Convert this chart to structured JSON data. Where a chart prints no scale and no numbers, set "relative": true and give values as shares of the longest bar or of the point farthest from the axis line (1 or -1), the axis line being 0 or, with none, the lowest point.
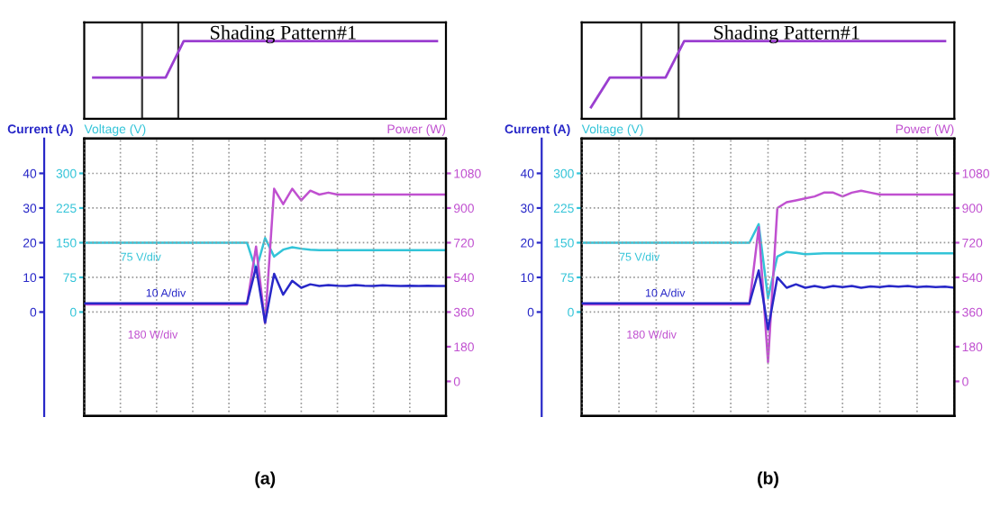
{
  "chart_data": [
    {
      "type": "line",
      "relative": true,
      "title": "Shading Pattern#1",
      "categories": [
        null,
        null,
        null,
        null,
        null,
        null,
        null,
        null,
        null,
        null,
        null,
        null,
        null,
        null,
        null,
        null,
        null,
        null,
        null,
        null
      ],
      "tick_labels": false,
      "grid": false,
      "series": [
        {
          "color": "#9b3fd0",
          "values": [
            0.53,
            0.53,
            0.53,
            0.53,
            0.53,
            1,
            1,
            1,
            1,
            1,
            1,
            1,
            1,
            1,
            1,
            1,
            1,
            1,
            1,
            1
          ]
        }
      ]
    },
    {
      "type": "line",
      "ylabel": "Current (A)",
      "y2label": "Voltage (V)",
      "y3label": "Power (W)",
      "categories": [
        null,
        null,
        null,
        null,
        null,
        null,
        null,
        null,
        null,
        null,
        null,
        null,
        null,
        null,
        null,
        null,
        null,
        null,
        null,
        null,
        null,
        null,
        null,
        null,
        null,
        null,
        null,
        null,
        null,
        null,
        null,
        null,
        null,
        null,
        null,
        null,
        null,
        null,
        null,
        null,
        null
      ],
      "ylim": [
        -30,
        50
      ],
      "yticks": [
        0,
        10,
        20,
        30,
        40
      ],
      "y2lim": [
        -225,
        375
      ],
      "y2ticks": [
        0,
        75,
        150,
        225,
        300
      ],
      "y3lim": [
        -180,
        1260
      ],
      "y3ticks": [
        0,
        180,
        360,
        540,
        720,
        900,
        1080
      ],
      "tick_labels": "y",
      "grid": true,
      "annotations": [
        "75 V/div",
        "10 A/div",
        "180 W/div",
        "(a)"
      ],
      "series": [
        {
          "axis": "y2",
          "color": "#33c4d8",
          "values": [
            150,
            150,
            150,
            150,
            150,
            150,
            150,
            150,
            150,
            150,
            150,
            150,
            150,
            150,
            150,
            150,
            150,
            150,
            150,
            90,
            160,
            120,
            135,
            140,
            137,
            135,
            134,
            134,
            134,
            134,
            134,
            134,
            134,
            134,
            134,
            134,
            134,
            134,
            134,
            134,
            134
          ]
        },
        {
          "axis": "y",
          "color": "#2828c8",
          "values": [
            2.5,
            2.5,
            2.5,
            2.5,
            2.5,
            2.5,
            2.5,
            2.5,
            2.5,
            2.5,
            2.5,
            2.5,
            2.5,
            2.5,
            2.5,
            2.5,
            2.5,
            2.5,
            2.5,
            13,
            -3,
            11,
            5,
            9,
            7,
            8,
            7.5,
            7.8,
            7.6,
            7.5,
            7.8,
            7.6,
            7.5,
            7.7,
            7.6,
            7.5,
            7.6,
            7.5,
            7.6,
            7.5,
            7.5
          ]
        },
        {
          "axis": "y3",
          "color": "#c050d0",
          "values": [
            400,
            400,
            400,
            400,
            400,
            400,
            400,
            400,
            400,
            400,
            400,
            400,
            400,
            400,
            400,
            400,
            400,
            400,
            400,
            700,
            300,
            1000,
            920,
            1000,
            940,
            990,
            970,
            980,
            970,
            970,
            970,
            970,
            970,
            970,
            970,
            970,
            970,
            970,
            970,
            970,
            970
          ]
        }
      ]
    },
    {
      "type": "line",
      "relative": true,
      "title": "Shading Pattern#1",
      "categories": [
        null,
        null,
        null,
        null,
        null,
        null,
        null,
        null,
        null,
        null,
        null,
        null,
        null,
        null,
        null,
        null,
        null,
        null,
        null,
        null
      ],
      "tick_labels": false,
      "grid": false,
      "series": [
        {
          "color": "#9b3fd0",
          "values": [
            0.15,
            0.53,
            0.53,
            0.53,
            0.53,
            1,
            1,
            1,
            1,
            1,
            1,
            1,
            1,
            1,
            1,
            1,
            1,
            1,
            1,
            1
          ]
        }
      ]
    },
    {
      "type": "line",
      "ylabel": "Current (A)",
      "y2label": "Voltage (V)",
      "y3label": "Power (W)",
      "categories": [
        null,
        null,
        null,
        null,
        null,
        null,
        null,
        null,
        null,
        null,
        null,
        null,
        null,
        null,
        null,
        null,
        null,
        null,
        null,
        null,
        null,
        null,
        null,
        null,
        null,
        null,
        null,
        null,
        null,
        null,
        null,
        null,
        null,
        null,
        null,
        null,
        null,
        null,
        null,
        null,
        null
      ],
      "ylim": [
        -30,
        50
      ],
      "yticks": [
        0,
        10,
        20,
        30,
        40
      ],
      "y2lim": [
        -225,
        375
      ],
      "y2ticks": [
        0,
        75,
        150,
        225,
        300
      ],
      "y3lim": [
        -180,
        1260
      ],
      "y3ticks": [
        0,
        180,
        360,
        540,
        720,
        900,
        1080
      ],
      "tick_labels": "y",
      "grid": true,
      "annotations": [
        "75 V/div",
        "10 A/div",
        "180 W/div",
        "(b)"
      ],
      "series": [
        {
          "axis": "y2",
          "color": "#33c4d8",
          "values": [
            150,
            150,
            150,
            150,
            150,
            150,
            150,
            150,
            150,
            150,
            150,
            150,
            150,
            150,
            150,
            150,
            150,
            150,
            150,
            190,
            30,
            120,
            130,
            128,
            125,
            126,
            127,
            127,
            127,
            127,
            127,
            127,
            127,
            127,
            127,
            127,
            127,
            127,
            127,
            127,
            127
          ]
        },
        {
          "axis": "y",
          "color": "#2828c8",
          "values": [
            2.5,
            2.5,
            2.5,
            2.5,
            2.5,
            2.5,
            2.5,
            2.5,
            2.5,
            2.5,
            2.5,
            2.5,
            2.5,
            2.5,
            2.5,
            2.5,
            2.5,
            2.5,
            2.5,
            12,
            -5,
            10,
            7,
            8,
            7,
            7.5,
            7,
            7.5,
            7.2,
            7.5,
            7,
            7.4,
            7.2,
            7.5,
            7.3,
            7.5,
            7.2,
            7.4,
            7.2,
            7.3,
            7
          ]
        },
        {
          "axis": "y3",
          "color": "#c050d0",
          "values": [
            400,
            400,
            400,
            400,
            400,
            400,
            400,
            400,
            400,
            400,
            400,
            400,
            400,
            400,
            400,
            400,
            400,
            400,
            400,
            800,
            100,
            900,
            930,
            940,
            950,
            960,
            980,
            980,
            960,
            980,
            990,
            980,
            970,
            970,
            970,
            970,
            970,
            970,
            970,
            970,
            970
          ]
        }
      ]
    }
  ]
}
